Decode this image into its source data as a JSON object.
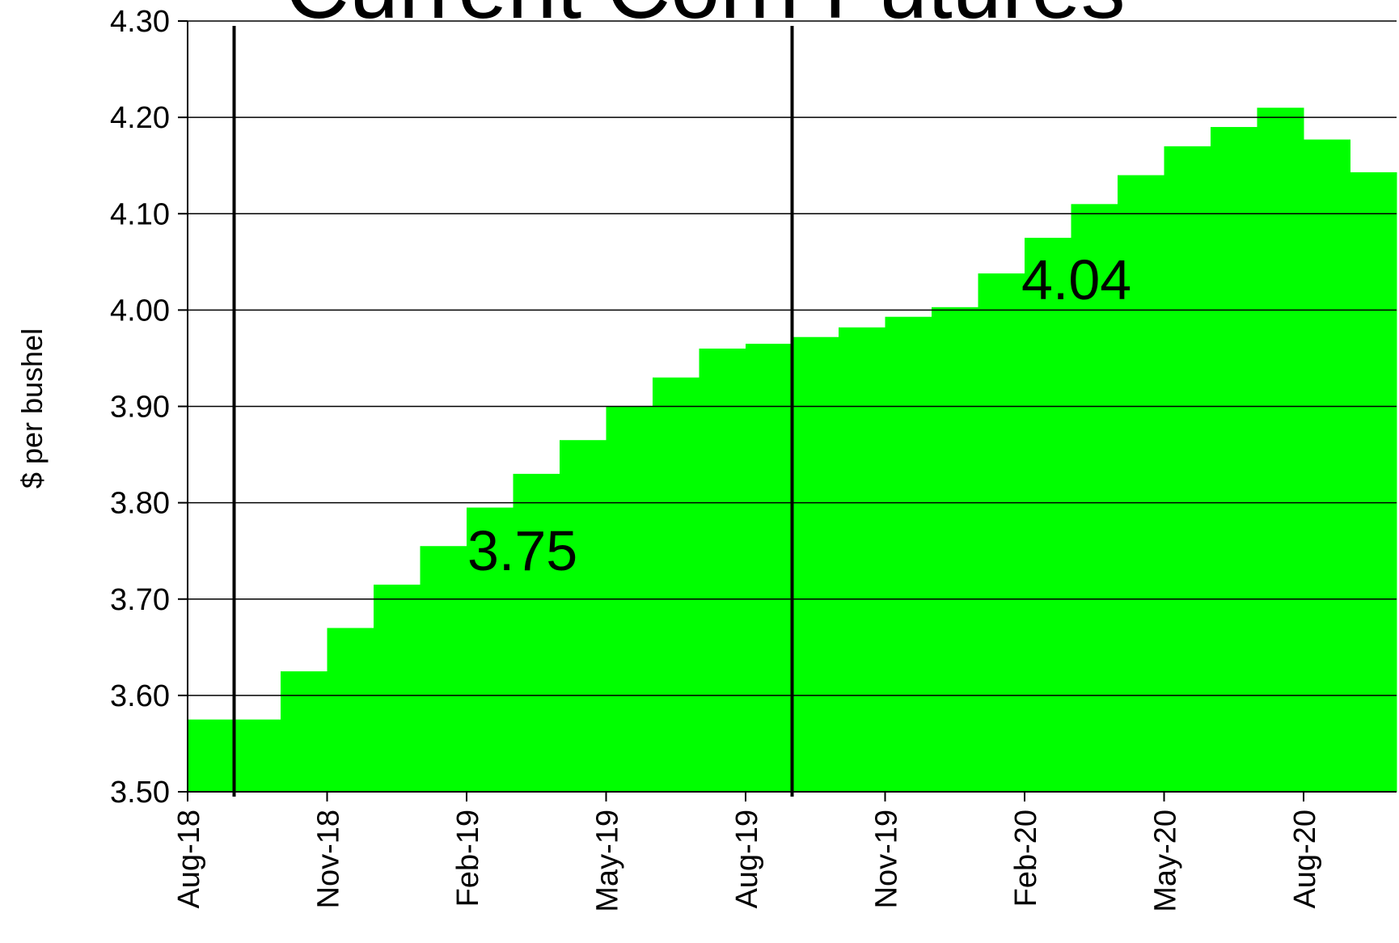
{
  "chart_data": {
    "type": "bar",
    "title": "Current Corn Futures",
    "y_label": "$ per bushel",
    "categories": [
      "Aug-18",
      null,
      null,
      "Nov-18",
      null,
      null,
      "Feb-19",
      null,
      null,
      "May-19",
      null,
      null,
      "Aug-19",
      null,
      null,
      "Nov-19",
      null,
      null,
      "Feb-20",
      null,
      null,
      "May-20",
      null,
      null,
      "Aug-20",
      null
    ],
    "values": [
      3.575,
      3.575,
      3.625,
      3.67,
      3.715,
      3.755,
      3.795,
      3.83,
      3.865,
      3.9,
      3.93,
      3.96,
      3.965,
      3.972,
      3.982,
      3.993,
      4.003,
      4.038,
      4.075,
      4.11,
      4.14,
      4.17,
      4.19,
      4.21,
      4.177,
      4.143
    ],
    "color": "#00ff00",
    "ylim": [
      3.5,
      4.3
    ],
    "yticks": [
      {
        "value": 3.5,
        "label": "3.50"
      },
      {
        "value": 3.6,
        "label": "3.60"
      },
      {
        "value": 3.7,
        "label": "3.70"
      },
      {
        "value": 3.8,
        "label": "3.80"
      },
      {
        "value": 3.9,
        "label": "3.90"
      },
      {
        "value": 4.0,
        "label": "4.00"
      },
      {
        "value": 4.1,
        "label": "4.10"
      },
      {
        "value": 4.2,
        "label": "4.20"
      },
      {
        "value": 4.3,
        "label": "4.30"
      }
    ],
    "grid": true,
    "annotations": [
      "3.75",
      "4.04"
    ]
  }
}
